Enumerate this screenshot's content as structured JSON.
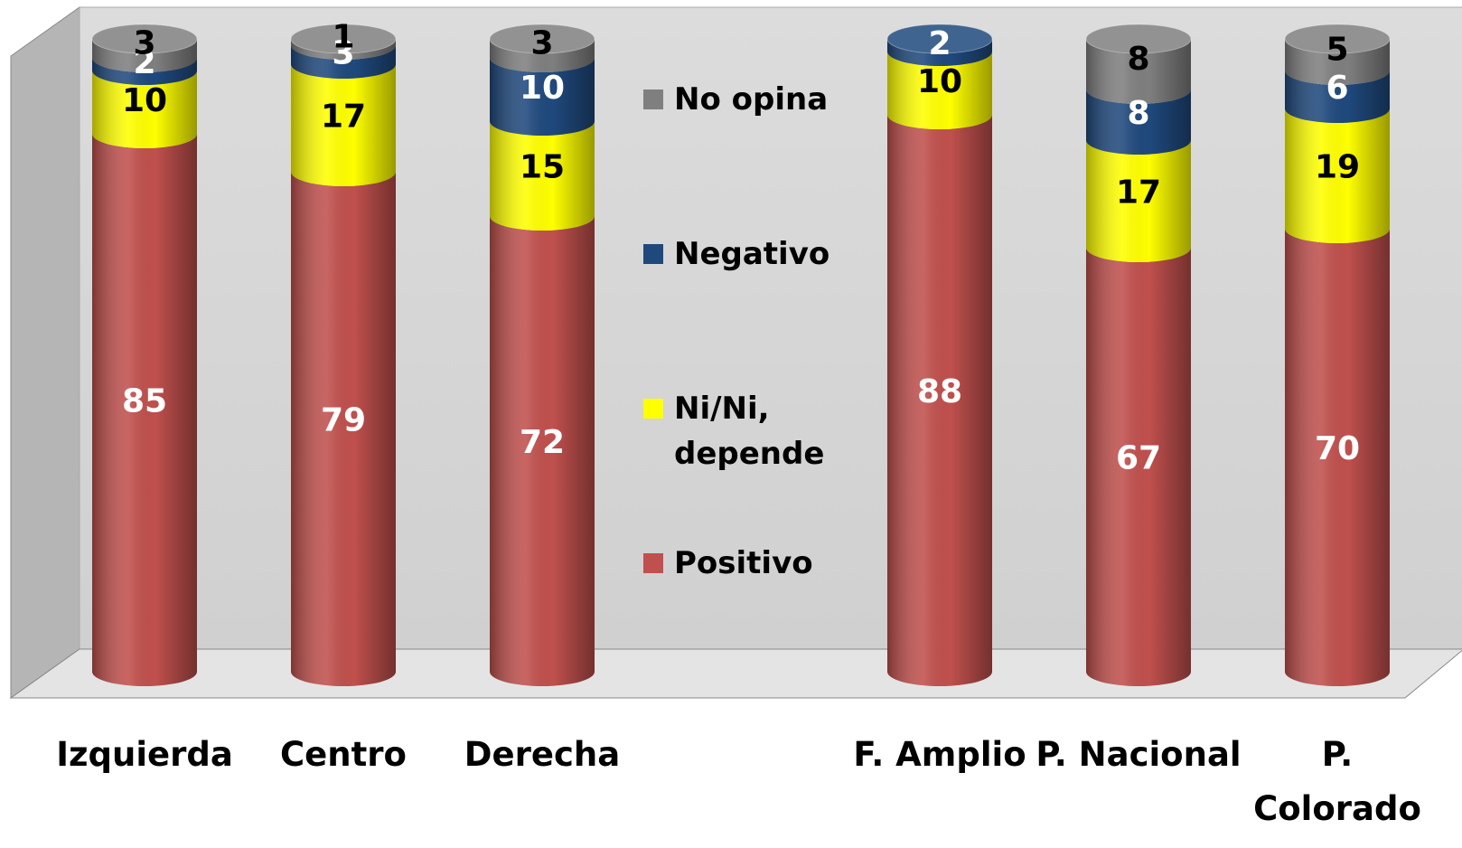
{
  "chart_data": {
    "type": "bar3d_stacked",
    "categories": [
      "Izquierda",
      "Centro",
      "Derecha",
      null,
      "F. Amplio",
      "P. Nacional",
      "P. Colorado"
    ],
    "series": [
      {
        "name": "Positivo",
        "color": "#c0504d",
        "label_color": "#ffffff",
        "values": [
          85,
          79,
          72,
          null,
          88,
          67,
          70
        ]
      },
      {
        "name": "Ni/Ni, depende",
        "color": "#ffff00",
        "label_color": "#000000",
        "values": [
          10,
          17,
          15,
          null,
          10,
          17,
          19
        ]
      },
      {
        "name": "Negativo",
        "color": "#1f497d",
        "label_color": "#ffffff",
        "values": [
          2,
          3,
          10,
          null,
          2,
          8,
          6
        ]
      },
      {
        "name": "No opina",
        "color": "#7f7f7f",
        "label_color": "#000000",
        "values": [
          3,
          1,
          3,
          null,
          null,
          8,
          5
        ]
      }
    ]
  }
}
